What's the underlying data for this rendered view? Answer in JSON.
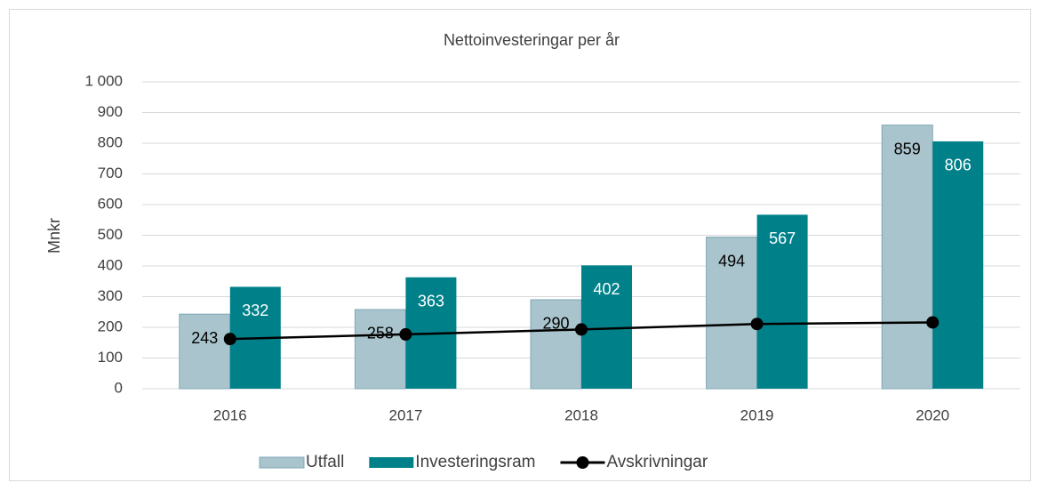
{
  "chart_data": {
    "type": "bar",
    "title": "Nettoinvesteringar per år",
    "y_label": "Mnkr",
    "categories": [
      "2016",
      "2017",
      "2018",
      "2019",
      "2020"
    ],
    "series": [
      {
        "name": "Utfall",
        "color": "#a9c4cc",
        "values": [
          243,
          258,
          290,
          494,
          859
        ]
      },
      {
        "name": "Investeringsram",
        "color": "#00818a",
        "values": [
          332,
          363,
          402,
          567,
          806
        ]
      },
      {
        "name": "Avskrivningar",
        "type": "line",
        "color": "#000000",
        "values": [
          162,
          177,
          193,
          211,
          216
        ]
      }
    ],
    "ylim": [
      0,
      1000
    ],
    "yticks": [
      0,
      100,
      200,
      300,
      400,
      500,
      600,
      700,
      800,
      900,
      {
        "value": 1000,
        "label": "1 000"
      }
    ],
    "grid": true,
    "legend": "bottom"
  }
}
